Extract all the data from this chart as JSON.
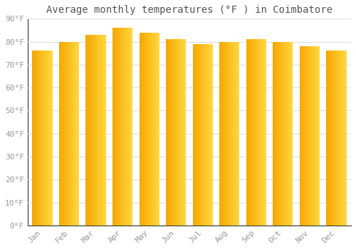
{
  "title": "Average monthly temperatures (°F ) in Coimbatore",
  "months": [
    "Jan",
    "Feb",
    "Mar",
    "Apr",
    "May",
    "Jun",
    "Jul",
    "Aug",
    "Sep",
    "Oct",
    "Nov",
    "Dec"
  ],
  "values": [
    76,
    80,
    83,
    86,
    84,
    81,
    79,
    80,
    81,
    80,
    78,
    76
  ],
  "bar_color_left": "#F5A700",
  "bar_color_right": "#FFD740",
  "background_color": "#FFFFFF",
  "plot_bg_color": "#FFFFFF",
  "grid_color": "#DDDDDD",
  "ylim": [
    0,
    90
  ],
  "yticks": [
    0,
    10,
    20,
    30,
    40,
    50,
    60,
    70,
    80,
    90
  ],
  "ytick_labels": [
    "0°F",
    "10°F",
    "20°F",
    "30°F",
    "40°F",
    "50°F",
    "60°F",
    "70°F",
    "80°F",
    "90°F"
  ],
  "title_fontsize": 10,
  "tick_fontsize": 8,
  "title_color": "#555555",
  "tick_color": "#999999",
  "bar_width": 0.75,
  "num_gradient_steps": 60
}
